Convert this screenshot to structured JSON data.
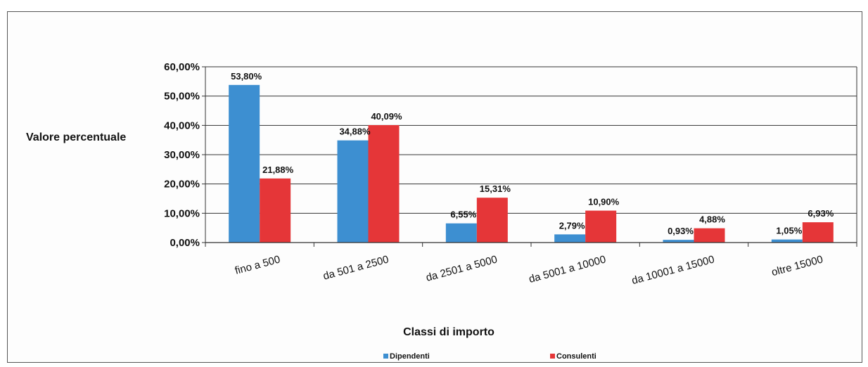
{
  "chart_data": {
    "type": "bar",
    "categories": [
      "fino a 500",
      "da 501 a 2500",
      "da 2501  a 5000",
      "da 5001  a 10000",
      "da 10001  a 15000",
      "oltre 15000"
    ],
    "series": [
      {
        "name": "Dipendenti",
        "values": [
          53.8,
          34.88,
          6.55,
          2.79,
          0.93,
          1.05
        ],
        "labels": [
          "53,80%",
          "34,88%",
          "6,55%",
          "2,79%",
          "0,93%",
          "1,05%"
        ],
        "color": "#3d8fd1"
      },
      {
        "name": "Consulenti",
        "values": [
          21.88,
          40.09,
          15.31,
          10.9,
          4.88,
          6.93
        ],
        "labels": [
          "21,88%",
          "40,09%",
          "15,31%",
          "10,90%",
          "4,88%",
          "6,93%"
        ],
        "color": "#e53638"
      }
    ],
    "ylim": [
      0,
      60
    ],
    "yticks": [
      0,
      10,
      20,
      30,
      40,
      50,
      60
    ],
    "ytick_labels": [
      "0,00%",
      "10,00%",
      "20,00%",
      "30,00%",
      "40,00%",
      "50,00%",
      "60,00%"
    ],
    "ylabel": "Valore percentuale",
    "xlabel": "Classi di importo",
    "grid": true,
    "legend_position": "bottom"
  }
}
